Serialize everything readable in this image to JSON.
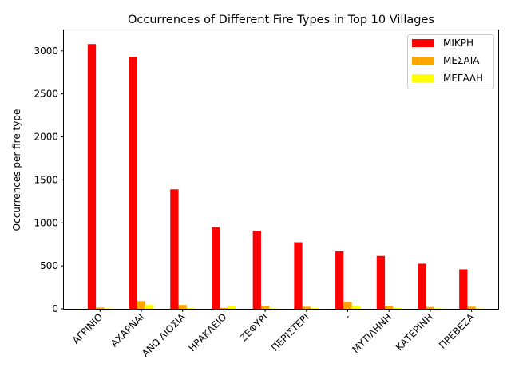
{
  "chart_data": {
    "type": "bar",
    "title": "Occurrences of Different Fire Types in Top 10 Villages",
    "xlabel": "",
    "ylabel": "Occurrences per fire type",
    "categories": [
      "ΑΓΡΙΝΙΟ",
      "ΑΧΑΡΝΑΙ",
      "ΑΝΩ ΛΙΟΣΙΑ",
      "ΗΡΑΚΛΕΙΟ",
      "ΖΕΦΥΡΙ",
      "ΠΕΡΙΣΤΕΡΙ",
      "-",
      "ΜΥΤΙΛΗΝΗ",
      "ΚΑΤΕΡΙΝΗ",
      "ΠΡΕΒΕΖΑ"
    ],
    "series": [
      {
        "name": "ΜΙΚΡΗ",
        "color": "#ff0000",
        "values": [
          3080,
          2930,
          1390,
          950,
          910,
          775,
          670,
          615,
          525,
          460
        ]
      },
      {
        "name": "ΜΕΣΑΙΑ",
        "color": "#ffa500",
        "values": [
          15,
          90,
          45,
          12,
          35,
          25,
          80,
          35,
          22,
          25
        ]
      },
      {
        "name": "ΜΕΓΑΛΗ",
        "color": "#ffff00",
        "values": [
          5,
          45,
          8,
          35,
          5,
          8,
          35,
          12,
          5,
          5
        ]
      }
    ],
    "ylim": [
      0,
      3240
    ],
    "yticks": [
      0,
      500,
      1000,
      1500,
      2000,
      2500,
      3000
    ],
    "grid": false,
    "legend_position": "top-right"
  }
}
